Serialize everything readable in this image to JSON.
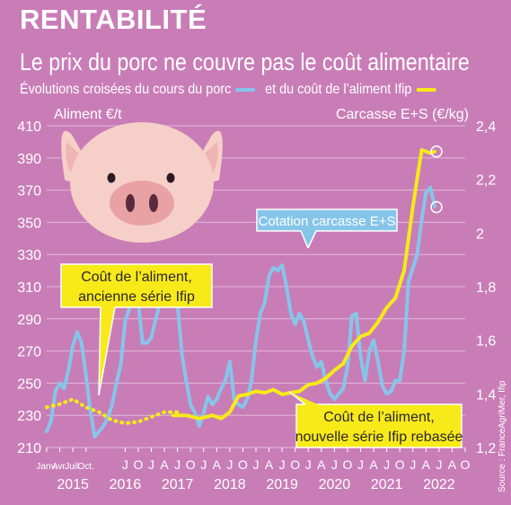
{
  "header": {
    "title": "RENTABILITÉ",
    "subtitle": "Le prix du porc ne couvre pas le coût alimentaire",
    "legend_text_1": "Évolutions croisées du cours du porc",
    "legend_text_2": "et du coût de l’aliment Ifip"
  },
  "colors": {
    "background": "#c97db7",
    "pork_line": "#86c5ea",
    "feed_line": "#f7ea18",
    "text": "#ffffff",
    "pig_body": "#f6cfc8",
    "pig_snout": "#e9a2a3"
  },
  "icons": {
    "illustration": "pig-face-icon"
  },
  "source": "Source : FranceAgriMer, Ifip",
  "chart_data": {
    "type": "line",
    "left_axis": {
      "label": "Aliment €/t",
      "ticks": [
        210,
        230,
        250,
        270,
        290,
        310,
        330,
        350,
        370,
        390,
        410
      ],
      "range": [
        210,
        410
      ]
    },
    "right_axis": {
      "label": "Carcasse E+S (€/kg)",
      "ticks": [
        "1,2",
        "1,4",
        "1,6",
        "1,8",
        "2",
        "2,2",
        "2,4"
      ],
      "range": [
        1.2,
        2.4
      ]
    },
    "x_axis": {
      "range": [
        0,
        96
      ],
      "month_labels": [
        {
          "x": 0,
          "label": "Janv."
        },
        {
          "x": 3,
          "label": "Avr."
        },
        {
          "x": 6,
          "label": "Juil."
        },
        {
          "x": 9,
          "label": "Oct."
        },
        {
          "x": 18,
          "label": "J"
        },
        {
          "x": 21,
          "label": "O"
        },
        {
          "x": 24,
          "label": "J"
        },
        {
          "x": 27,
          "label": "A"
        },
        {
          "x": 30,
          "label": "J"
        },
        {
          "x": 33,
          "label": "O"
        },
        {
          "x": 36,
          "label": "J"
        },
        {
          "x": 39,
          "label": "A"
        },
        {
          "x": 42,
          "label": "J"
        },
        {
          "x": 45,
          "label": "O"
        },
        {
          "x": 48,
          "label": "J"
        },
        {
          "x": 51,
          "label": "A"
        },
        {
          "x": 54,
          "label": "J"
        },
        {
          "x": 57,
          "label": "O"
        },
        {
          "x": 60,
          "label": "J"
        },
        {
          "x": 63,
          "label": "A"
        },
        {
          "x": 66,
          "label": "J"
        },
        {
          "x": 69,
          "label": "O"
        },
        {
          "x": 72,
          "label": "J"
        },
        {
          "x": 75,
          "label": "A"
        },
        {
          "x": 78,
          "label": "J"
        },
        {
          "x": 81,
          "label": "O"
        },
        {
          "x": 84,
          "label": "J"
        },
        {
          "x": 87,
          "label": "A"
        },
        {
          "x": 90,
          "label": "J"
        },
        {
          "x": 93,
          "label": "A"
        },
        {
          "x": 96,
          "label": "O"
        }
      ],
      "year_labels": [
        {
          "x": 6,
          "label": "2015"
        },
        {
          "x": 18,
          "label": "2016"
        },
        {
          "x": 30,
          "label": "2017"
        },
        {
          "x": 42,
          "label": "2018"
        },
        {
          "x": 54,
          "label": "2019"
        },
        {
          "x": 66,
          "label": "2020"
        },
        {
          "x": 78,
          "label": "2021"
        },
        {
          "x": 90,
          "label": "2022"
        }
      ]
    },
    "series": [
      {
        "name": "Cotation carcasse E+S",
        "axis": "right",
        "color": "#86c5ea",
        "points": [
          [
            0,
            1.26
          ],
          [
            1,
            1.3
          ],
          [
            2,
            1.41
          ],
          [
            3,
            1.44
          ],
          [
            4,
            1.42
          ],
          [
            5,
            1.49
          ],
          [
            6,
            1.58
          ],
          [
            7,
            1.63
          ],
          [
            8,
            1.59
          ],
          [
            9,
            1.47
          ],
          [
            10,
            1.34
          ],
          [
            11,
            1.24
          ],
          [
            12,
            1.26
          ],
          [
            13,
            1.28
          ],
          [
            14,
            1.31
          ],
          [
            15,
            1.36
          ],
          [
            16,
            1.44
          ],
          [
            17,
            1.51
          ],
          [
            18,
            1.67
          ],
          [
            19,
            1.72
          ],
          [
            20,
            1.76
          ],
          [
            21,
            1.74
          ],
          [
            22,
            1.59
          ],
          [
            23,
            1.59
          ],
          [
            24,
            1.61
          ],
          [
            25,
            1.68
          ],
          [
            26,
            1.74
          ],
          [
            27,
            1.8
          ],
          [
            28,
            1.78
          ],
          [
            29,
            1.76
          ],
          [
            30,
            1.74
          ],
          [
            31,
            1.55
          ],
          [
            32,
            1.45
          ],
          [
            33,
            1.36
          ],
          [
            34,
            1.33
          ],
          [
            35,
            1.28
          ],
          [
            36,
            1.33
          ],
          [
            37,
            1.39
          ],
          [
            38,
            1.36
          ],
          [
            39,
            1.38
          ],
          [
            40,
            1.42
          ],
          [
            41,
            1.45
          ],
          [
            42,
            1.52
          ],
          [
            43,
            1.38
          ],
          [
            44,
            1.36
          ],
          [
            45,
            1.35
          ],
          [
            46,
            1.38
          ],
          [
            47,
            1.45
          ],
          [
            48,
            1.6
          ],
          [
            49,
            1.7
          ],
          [
            50,
            1.74
          ],
          [
            51,
            1.84
          ],
          [
            52,
            1.87
          ],
          [
            53,
            1.86
          ],
          [
            54,
            1.88
          ],
          [
            55,
            1.8
          ],
          [
            56,
            1.7
          ],
          [
            57,
            1.66
          ],
          [
            58,
            1.7
          ],
          [
            59,
            1.67
          ],
          [
            60,
            1.6
          ],
          [
            61,
            1.54
          ],
          [
            62,
            1.5
          ],
          [
            63,
            1.52
          ],
          [
            64,
            1.45
          ],
          [
            65,
            1.4
          ],
          [
            66,
            1.38
          ],
          [
            67,
            1.4
          ],
          [
            68,
            1.42
          ],
          [
            69,
            1.5
          ],
          [
            70,
            1.69
          ],
          [
            71,
            1.7
          ],
          [
            72,
            1.54
          ],
          [
            73,
            1.45
          ],
          [
            74,
            1.56
          ],
          [
            75,
            1.6
          ],
          [
            76,
            1.52
          ],
          [
            77,
            1.43
          ],
          [
            78,
            1.4
          ],
          [
            79,
            1.41
          ],
          [
            80,
            1.45
          ],
          [
            81,
            1.45
          ],
          [
            82,
            1.56
          ],
          [
            83,
            1.82
          ],
          [
            84,
            1.87
          ],
          [
            85,
            1.92
          ],
          [
            86,
            2.05
          ],
          [
            87,
            2.15
          ],
          [
            88,
            2.17
          ],
          [
            89,
            2.1
          ]
        ]
      },
      {
        "name": "Coût de l’aliment, ancienne série Ifip",
        "axis": "left",
        "color": "#f7ea18",
        "style": "dotted",
        "points": [
          [
            0,
            235
          ],
          [
            3,
            237
          ],
          [
            6,
            240
          ],
          [
            9,
            235
          ],
          [
            12,
            232
          ],
          [
            15,
            227
          ],
          [
            18,
            225
          ],
          [
            21,
            226
          ],
          [
            24,
            229
          ],
          [
            27,
            232
          ],
          [
            30,
            232
          ]
        ]
      },
      {
        "name": "Coût de l’aliment, nouvelle série Ifip rebasée",
        "axis": "left",
        "color": "#f7ea18",
        "style": "solid",
        "points": [
          [
            29,
            230
          ],
          [
            32,
            230
          ],
          [
            35,
            228
          ],
          [
            38,
            230
          ],
          [
            40,
            228
          ],
          [
            42,
            232
          ],
          [
            44,
            242
          ],
          [
            46,
            243
          ],
          [
            48,
            245
          ],
          [
            50,
            244
          ],
          [
            52,
            246
          ],
          [
            54,
            243
          ],
          [
            56,
            244
          ],
          [
            58,
            245
          ],
          [
            60,
            249
          ],
          [
            62,
            250
          ],
          [
            64,
            253
          ],
          [
            66,
            258
          ],
          [
            68,
            262
          ],
          [
            70,
            273
          ],
          [
            72,
            279
          ],
          [
            74,
            281
          ],
          [
            76,
            288
          ],
          [
            78,
            297
          ],
          [
            80,
            303
          ],
          [
            82,
            320
          ],
          [
            84,
            360
          ],
          [
            86,
            395
          ],
          [
            88,
            393
          ],
          [
            89,
            394
          ]
        ]
      }
    ],
    "annotations": [
      {
        "text": "Cotation carcasse E+S"
      },
      {
        "text_lines": [
          "Coût de l’aliment,",
          "ancienne série Ifip"
        ]
      },
      {
        "text_lines": [
          "Coût de l’aliment,",
          "nouvelle série Ifip rebasée"
        ]
      }
    ]
  }
}
